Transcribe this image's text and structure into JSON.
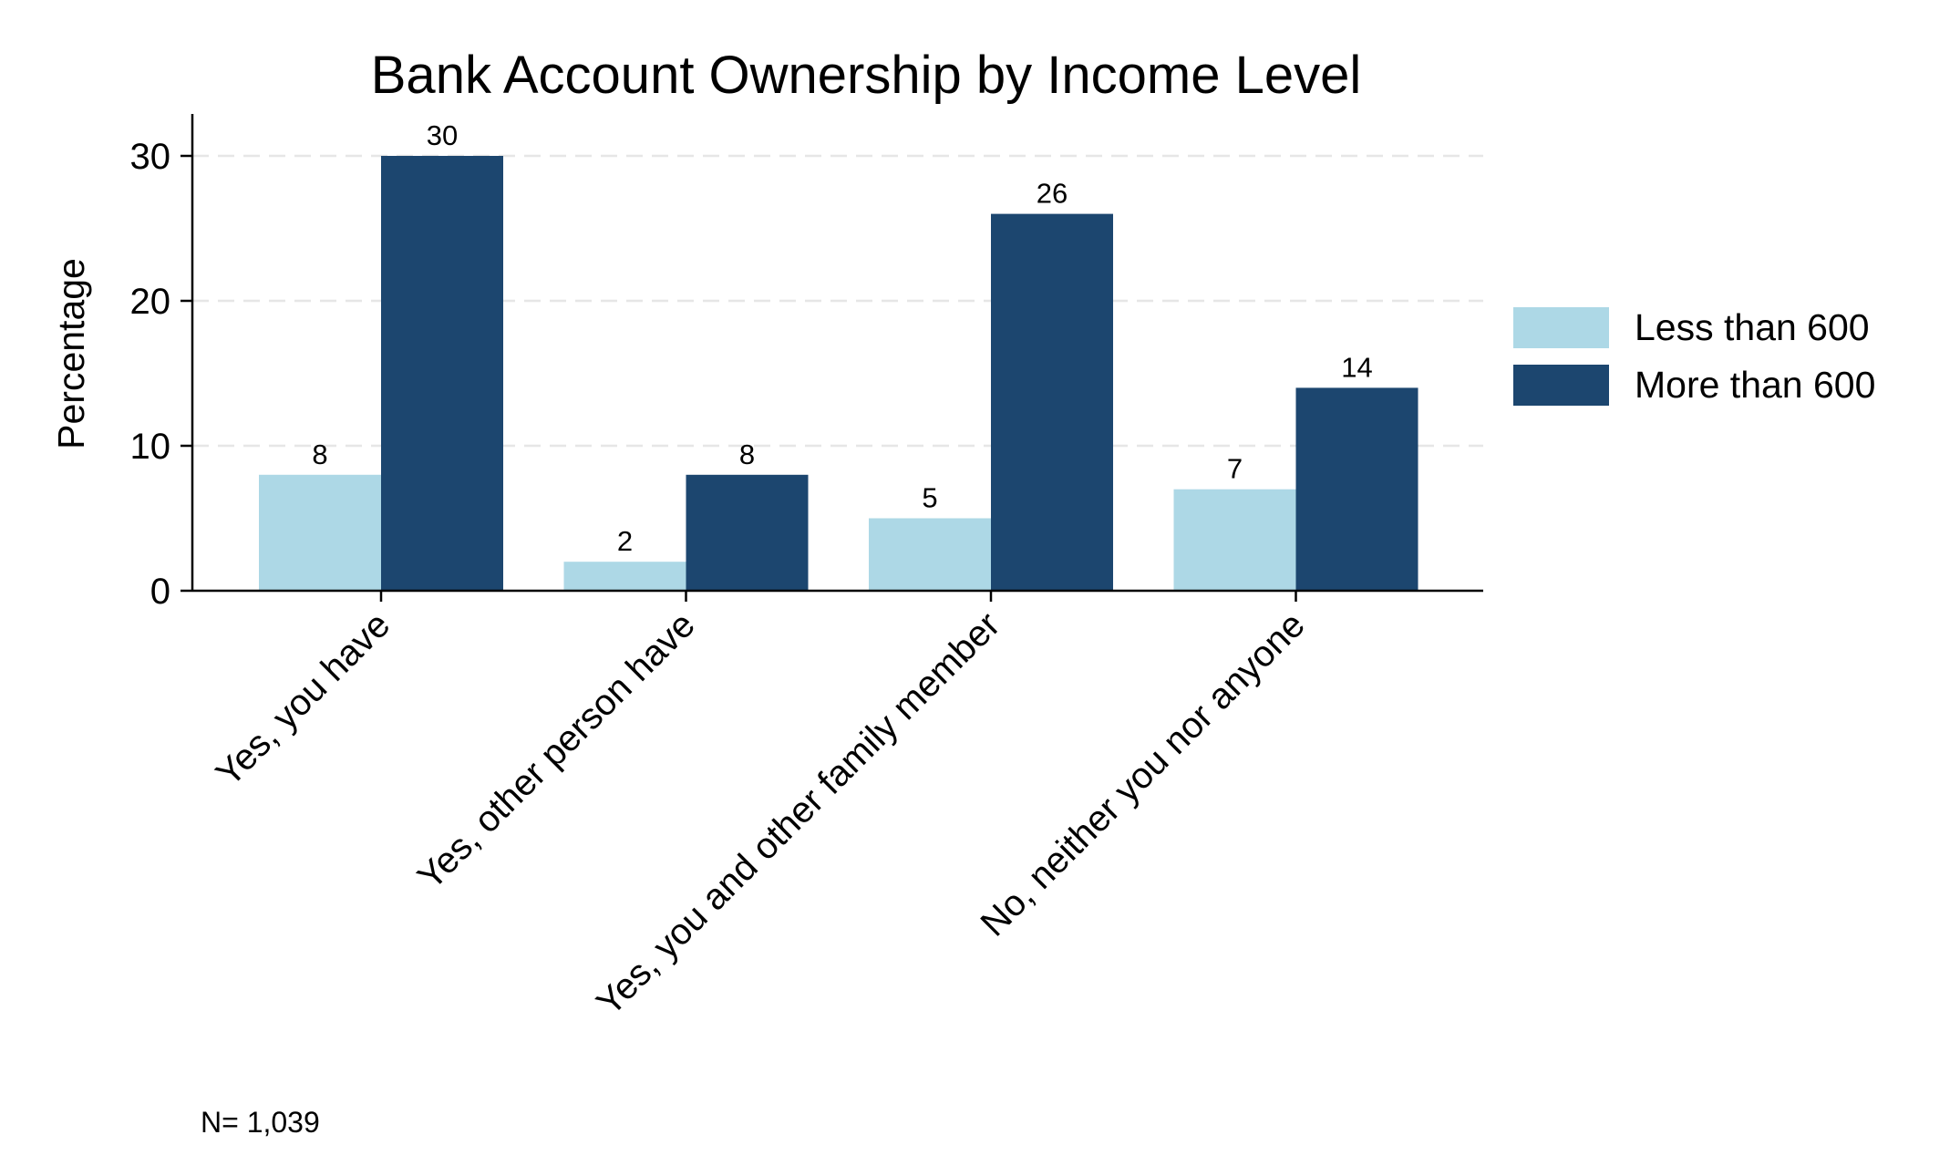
{
  "chart_data": {
    "type": "bar",
    "title": "Bank Account Ownership by Income Level",
    "ylabel": "Percentage",
    "xlabel": "",
    "ylim": [
      0,
      33
    ],
    "yticks": [
      0,
      10,
      20,
      30
    ],
    "grid": true,
    "legend_position": "right",
    "categories": [
      "Yes, you have",
      "Yes, other person have",
      "Yes, you and other family member",
      "No, neither you nor anyone"
    ],
    "series": [
      {
        "name": "Less than 600",
        "values": [
          8,
          2,
          5,
          7
        ],
        "color": "#add8e6"
      },
      {
        "name": "More than 600",
        "values": [
          30,
          8,
          26,
          14
        ],
        "color": "#1c466f"
      }
    ],
    "note": "N= 1,039"
  }
}
